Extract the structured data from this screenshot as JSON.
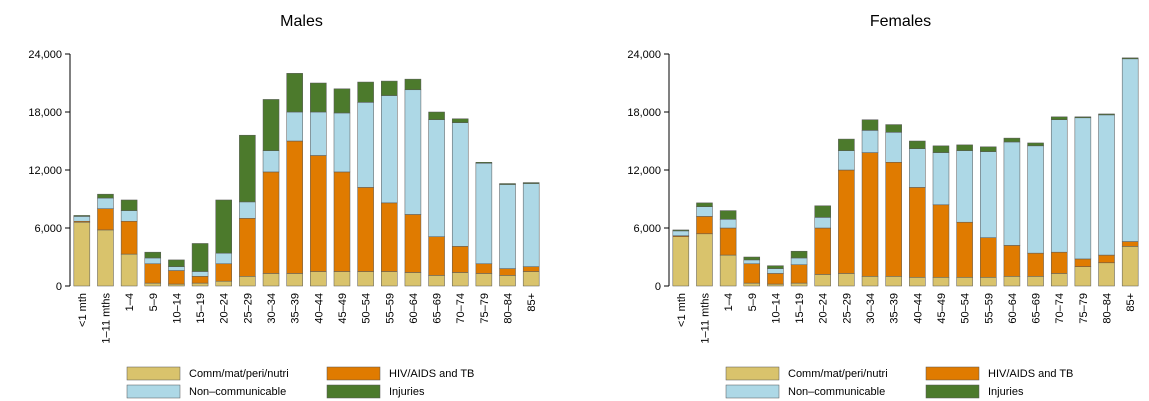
{
  "chart_data": [
    {
      "type": "bar",
      "stacked": true,
      "title": "Males",
      "categories": [
        "<1 mth",
        "1–11 mths",
        "1–4",
        "5–9",
        "10–14",
        "15–19",
        "20–24",
        "25–29",
        "30–34",
        "35–39",
        "40–44",
        "45–49",
        "50–54",
        "55–59",
        "60–64",
        "65–69",
        "70–74",
        "75–79",
        "80–84",
        "85+"
      ],
      "series": [
        {
          "name": "Comm/mat/peri/nutri",
          "color": "#d9c36c",
          "values": [
            6600,
            5800,
            3300,
            300,
            200,
            300,
            500,
            1000,
            1300,
            1300,
            1500,
            1500,
            1500,
            1500,
            1400,
            1100,
            1400,
            1300,
            1100,
            1500
          ]
        },
        {
          "name": "HIV/AIDS and TB",
          "color": "#e07b00",
          "values": [
            100,
            2200,
            3400,
            2000,
            1400,
            700,
            1800,
            6000,
            10500,
            13700,
            12000,
            10300,
            8700,
            7100,
            6000,
            4000,
            2700,
            1000,
            700,
            500
          ]
        },
        {
          "name": "Non–communicable",
          "color": "#add8e6",
          "values": [
            500,
            1100,
            1100,
            600,
            400,
            500,
            1100,
            1700,
            2200,
            3000,
            4500,
            6100,
            8800,
            11100,
            12900,
            12100,
            12800,
            10400,
            8700,
            8600
          ]
        },
        {
          "name": "Injuries",
          "color": "#4c7a2c",
          "values": [
            100,
            400,
            1100,
            600,
            700,
            2900,
            5500,
            6900,
            5300,
            4000,
            3000,
            2500,
            2100,
            1500,
            1100,
            800,
            400,
            100,
            100,
            100
          ]
        }
      ],
      "ylim": [
        0,
        24000
      ],
      "yticks": [
        0,
        {
          "value": 6000,
          "label": "6,000"
        },
        {
          "value": 12000,
          "label": "12,000"
        },
        {
          "value": 18000,
          "label": "18,000"
        },
        {
          "value": 24000,
          "label": "24,000"
        }
      ]
    },
    {
      "type": "bar",
      "stacked": true,
      "title": "Females",
      "categories": [
        "<1 mth",
        "1–11 mths",
        "1–4",
        "5–9",
        "10–14",
        "15–19",
        "20–24",
        "25–29",
        "30–34",
        "35–39",
        "40–44",
        "45–49",
        "50–54",
        "55–59",
        "60–64",
        "65–69",
        "70–74",
        "75–79",
        "80–84",
        "85+"
      ],
      "series": [
        {
          "name": "Comm/mat/peri/nutri",
          "color": "#d9c36c",
          "values": [
            5100,
            5400,
            3200,
            300,
            200,
            300,
            1200,
            1300,
            1000,
            1000,
            900,
            900,
            900,
            900,
            1000,
            1000,
            1300,
            2000,
            2400,
            4100
          ]
        },
        {
          "name": "HIV/AIDS and TB",
          "color": "#e07b00",
          "values": [
            100,
            1800,
            2800,
            2000,
            1100,
            1900,
            4800,
            10700,
            12800,
            11800,
            9300,
            7500,
            5700,
            4100,
            3200,
            2400,
            2200,
            800,
            800,
            500
          ]
        },
        {
          "name": "Non–communicable",
          "color": "#add8e6",
          "values": [
            500,
            1000,
            900,
            400,
            500,
            700,
            1100,
            2000,
            2300,
            3100,
            4000,
            5400,
            7400,
            8900,
            10700,
            11100,
            13700,
            14600,
            14500,
            18900
          ]
        },
        {
          "name": "Injuries",
          "color": "#4c7a2c",
          "values": [
            100,
            400,
            900,
            300,
            300,
            700,
            1200,
            1200,
            1100,
            800,
            800,
            700,
            600,
            500,
            400,
            300,
            300,
            100,
            100,
            100
          ]
        }
      ],
      "ylim": [
        0,
        24000
      ],
      "yticks": [
        0,
        {
          "value": 6000,
          "label": "6,000"
        },
        {
          "value": 12000,
          "label": "12,000"
        },
        {
          "value": 18000,
          "label": "18,000"
        },
        {
          "value": 24000,
          "label": "24,000"
        }
      ]
    }
  ]
}
